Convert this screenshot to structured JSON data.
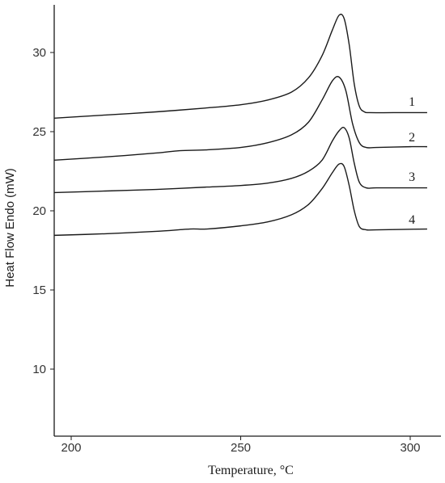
{
  "chart_data": {
    "type": "line",
    "title": "",
    "xlabel": "Temperature, °C",
    "ylabel": "Heat Flow Endo (mW)",
    "xlim": [
      195,
      306
    ],
    "ylim": [
      5,
      33
    ],
    "xticks": [
      200,
      250,
      300
    ],
    "yticks": [
      10,
      15,
      20,
      25,
      30
    ],
    "grid": false,
    "legend": "none",
    "series": [
      {
        "name": "1",
        "x": [
          195,
          210,
          225,
          240,
          250,
          258,
          265,
          270,
          274,
          277,
          279,
          280.5,
          282,
          283.5,
          285,
          286.5,
          288,
          295,
          305
        ],
        "y": [
          25.85,
          26.05,
          26.25,
          26.5,
          26.7,
          27.0,
          27.5,
          28.4,
          29.8,
          31.4,
          32.35,
          32.15,
          30.5,
          28.0,
          26.6,
          26.25,
          26.2,
          26.2,
          26.2
        ]
      },
      {
        "name": "2",
        "x": [
          195,
          210,
          225,
          232,
          240,
          250,
          258,
          265,
          270,
          274,
          277,
          279,
          281,
          283,
          285,
          287,
          290,
          300,
          305
        ],
        "y": [
          23.2,
          23.4,
          23.65,
          23.8,
          23.85,
          24.0,
          24.3,
          24.8,
          25.6,
          27.0,
          28.2,
          28.45,
          27.6,
          25.5,
          24.3,
          24.0,
          24.0,
          24.05,
          24.05
        ]
      },
      {
        "name": "3",
        "x": [
          195,
          210,
          225,
          240,
          250,
          258,
          265,
          270,
          274,
          277,
          279,
          280.5,
          282,
          283.5,
          285,
          287,
          290,
          300,
          305
        ],
        "y": [
          21.15,
          21.25,
          21.35,
          21.5,
          21.6,
          21.75,
          22.05,
          22.5,
          23.2,
          24.4,
          25.05,
          25.25,
          24.6,
          23.0,
          21.8,
          21.45,
          21.45,
          21.45,
          21.45
        ]
      },
      {
        "name": "4",
        "x": [
          195,
          210,
          225,
          235,
          240,
          250,
          258,
          265,
          270,
          274,
          277,
          279,
          280.5,
          282,
          283.5,
          285,
          287,
          290,
          305
        ],
        "y": [
          18.45,
          18.55,
          18.7,
          18.85,
          18.85,
          19.05,
          19.3,
          19.75,
          20.4,
          21.4,
          22.4,
          22.95,
          22.8,
          21.6,
          20.0,
          19.0,
          18.8,
          18.8,
          18.85
        ]
      }
    ],
    "annotations": [
      {
        "text": "1",
        "x": 300.5,
        "y": 26.9
      },
      {
        "text": "2",
        "x": 300.5,
        "y": 24.65
      },
      {
        "text": "3",
        "x": 300.5,
        "y": 22.15
      },
      {
        "text": "4",
        "x": 300.5,
        "y": 19.45
      }
    ]
  }
}
